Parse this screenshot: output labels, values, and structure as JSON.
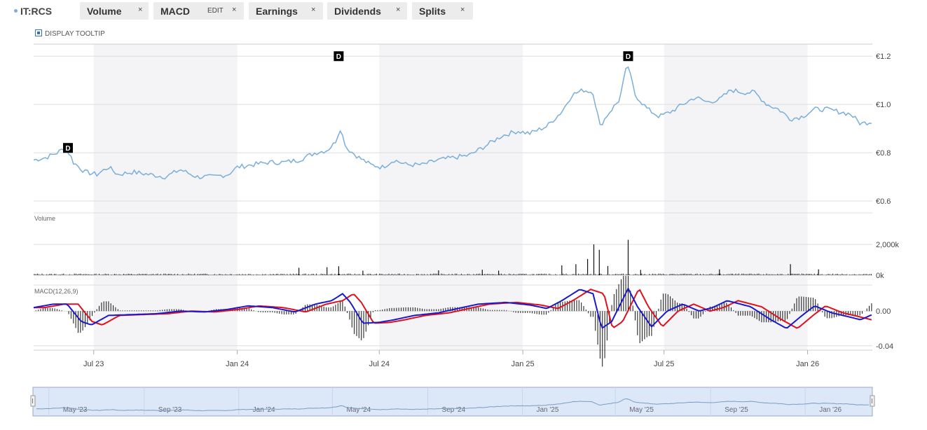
{
  "toolbar": {
    "ticker": "IT:RCS",
    "chips": [
      {
        "label": "Volume",
        "close": "×"
      },
      {
        "label": "MACD",
        "edit": "EDIT",
        "close": "×"
      },
      {
        "label": "Earnings",
        "close": "×"
      },
      {
        "label": "Dividends",
        "close": "×"
      },
      {
        "label": "Splits",
        "close": "×"
      }
    ]
  },
  "display_tooltip": "DISPLAY TOOLTIP",
  "colors": {
    "price_line": "#7aaedb",
    "macd_line": "#1a1acc",
    "signal_line": "#e0101c",
    "histogram": "#111111",
    "band": "#f4f4f7",
    "navigator_fill": "#dce8f8"
  },
  "chart_data": [
    {
      "type": "line",
      "name": "price",
      "ylim": [
        0.6,
        1.25
      ],
      "yticks": [
        {
          "value": 1.2,
          "label": "€1.2"
        },
        {
          "value": 1.0,
          "label": "€1.0"
        },
        {
          "value": 0.8,
          "label": "€0.8"
        },
        {
          "value": 0.6,
          "label": "€0.6"
        }
      ],
      "xticks": [
        "Jul 23",
        "Jan 24",
        "Jul 24",
        "Jan 25",
        "Jul 25",
        "Jan 26"
      ],
      "x_range": [
        "2023-04-15",
        "2026-03-25"
      ],
      "points": [
        [
          "2023-04-15",
          0.77
        ],
        [
          "2023-05-01",
          0.78
        ],
        [
          "2023-05-15",
          0.8
        ],
        [
          "2023-05-25",
          0.82
        ],
        [
          "2023-06-01",
          0.79
        ],
        [
          "2023-06-05",
          0.76
        ],
        [
          "2023-06-20",
          0.72
        ],
        [
          "2023-07-05",
          0.71
        ],
        [
          "2023-07-20",
          0.74
        ],
        [
          "2023-08-01",
          0.71
        ],
        [
          "2023-08-20",
          0.72
        ],
        [
          "2023-09-10",
          0.71
        ],
        [
          "2023-10-01",
          0.7
        ],
        [
          "2023-10-20",
          0.73
        ],
        [
          "2023-11-10",
          0.7
        ],
        [
          "2023-12-01",
          0.7
        ],
        [
          "2023-12-20",
          0.71
        ],
        [
          "2024-01-01",
          0.74
        ],
        [
          "2024-01-20",
          0.75
        ],
        [
          "2024-02-10",
          0.76
        ],
        [
          "2024-03-01",
          0.76
        ],
        [
          "2024-03-20",
          0.77
        ],
        [
          "2024-04-10",
          0.8
        ],
        [
          "2024-04-25",
          0.81
        ],
        [
          "2024-05-05",
          0.84
        ],
        [
          "2024-05-12",
          0.9
        ],
        [
          "2024-05-20",
          0.82
        ],
        [
          "2024-06-05",
          0.78
        ],
        [
          "2024-06-20",
          0.75
        ],
        [
          "2024-07-05",
          0.74
        ],
        [
          "2024-07-20",
          0.77
        ],
        [
          "2024-08-05",
          0.75
        ],
        [
          "2024-08-25",
          0.75
        ],
        [
          "2024-09-15",
          0.77
        ],
        [
          "2024-10-05",
          0.78
        ],
        [
          "2024-10-25",
          0.79
        ],
        [
          "2024-11-15",
          0.83
        ],
        [
          "2024-12-05",
          0.87
        ],
        [
          "2024-12-25",
          0.89
        ],
        [
          "2025-01-10",
          0.88
        ],
        [
          "2025-02-01",
          0.91
        ],
        [
          "2025-02-20",
          0.97
        ],
        [
          "2025-03-05",
          1.04
        ],
        [
          "2025-03-20",
          1.06
        ],
        [
          "2025-04-01",
          1.05
        ],
        [
          "2025-04-10",
          0.91
        ],
        [
          "2025-04-20",
          0.96
        ],
        [
          "2025-05-05",
          1.02
        ],
        [
          "2025-05-15",
          1.17
        ],
        [
          "2025-05-25",
          1.04
        ],
        [
          "2025-06-10",
          0.98
        ],
        [
          "2025-06-25",
          0.95
        ],
        [
          "2025-07-10",
          0.97
        ],
        [
          "2025-07-25",
          1.0
        ],
        [
          "2025-08-10",
          1.03
        ],
        [
          "2025-08-25",
          1.01
        ],
        [
          "2025-09-10",
          1.02
        ],
        [
          "2025-09-25",
          1.06
        ],
        [
          "2025-10-10",
          1.05
        ],
        [
          "2025-10-25",
          1.05
        ],
        [
          "2025-11-10",
          1.0
        ],
        [
          "2025-11-25",
          0.98
        ],
        [
          "2025-12-10",
          0.94
        ],
        [
          "2025-12-25",
          0.95
        ],
        [
          "2026-01-10",
          0.98
        ],
        [
          "2026-01-25",
          0.98
        ],
        [
          "2026-02-10",
          0.97
        ],
        [
          "2026-02-25",
          0.96
        ],
        [
          "2026-03-10",
          0.92
        ],
        [
          "2026-03-25",
          0.93
        ]
      ],
      "dividend_markers": [
        {
          "date": "2023-05-29",
          "label": "D"
        },
        {
          "date": "2024-05-10",
          "label": "D"
        },
        {
          "date": "2025-05-16",
          "label": "D"
        }
      ]
    },
    {
      "type": "bar",
      "name": "volume",
      "label": "Volume",
      "ylim": [
        0,
        2000
      ],
      "yticks": [
        {
          "value": 2000,
          "label": "2,000k"
        },
        {
          "value": 0,
          "label": "0k"
        }
      ],
      "baseline_k": 60,
      "spikes": [
        [
          "2024-03-20",
          480
        ],
        [
          "2024-04-25",
          520
        ],
        [
          "2024-05-10",
          580
        ],
        [
          "2024-06-10",
          300
        ],
        [
          "2024-09-15",
          320
        ],
        [
          "2024-11-10",
          360
        ],
        [
          "2024-12-01",
          300
        ],
        [
          "2025-02-20",
          640
        ],
        [
          "2025-03-10",
          720
        ],
        [
          "2025-03-25",
          1050
        ],
        [
          "2025-04-02",
          2000
        ],
        [
          "2025-04-09",
          1650
        ],
        [
          "2025-04-20",
          600
        ],
        [
          "2025-05-16",
          2300
        ],
        [
          "2025-06-01",
          350
        ],
        [
          "2025-09-10",
          380
        ],
        [
          "2025-12-10",
          720
        ],
        [
          "2026-01-15",
          380
        ]
      ]
    },
    {
      "type": "line",
      "name": "macd",
      "label": "MACD(12,26,9)",
      "ylim": [
        -0.045,
        0.03
      ],
      "yticks": [
        {
          "value": 0.0,
          "label": "0.00"
        },
        {
          "value": -0.04,
          "label": "-0.04"
        }
      ],
      "macd": [
        [
          "2023-04-15",
          0.004
        ],
        [
          "2023-05-10",
          0.008
        ],
        [
          "2023-05-28",
          0.008
        ],
        [
          "2023-06-15",
          -0.012
        ],
        [
          "2023-06-28",
          -0.016
        ],
        [
          "2023-07-20",
          -0.005
        ],
        [
          "2023-08-20",
          -0.004
        ],
        [
          "2023-09-20",
          -0.003
        ],
        [
          "2023-10-20",
          0.0
        ],
        [
          "2023-11-20",
          -0.001
        ],
        [
          "2023-12-20",
          0.002
        ],
        [
          "2024-01-15",
          0.006
        ],
        [
          "2024-02-15",
          0.004
        ],
        [
          "2024-03-15",
          -0.001
        ],
        [
          "2024-04-10",
          0.008
        ],
        [
          "2024-05-01",
          0.012
        ],
        [
          "2024-05-15",
          0.02
        ],
        [
          "2024-05-25",
          0.01
        ],
        [
          "2024-06-10",
          -0.014
        ],
        [
          "2024-07-01",
          -0.013
        ],
        [
          "2024-07-20",
          -0.01
        ],
        [
          "2024-08-15",
          -0.005
        ],
        [
          "2024-09-15",
          -0.002
        ],
        [
          "2024-10-15",
          0.004
        ],
        [
          "2024-11-05",
          0.008
        ],
        [
          "2024-12-10",
          0.01
        ],
        [
          "2025-01-10",
          0.007
        ],
        [
          "2025-02-01",
          0.003
        ],
        [
          "2025-02-20",
          0.012
        ],
        [
          "2025-03-15",
          0.025
        ],
        [
          "2025-04-01",
          0.02
        ],
        [
          "2025-04-12",
          -0.02
        ],
        [
          "2025-04-25",
          -0.012
        ],
        [
          "2025-05-16",
          0.026
        ],
        [
          "2025-05-28",
          0.005
        ],
        [
          "2025-06-15",
          -0.018
        ],
        [
          "2025-07-05",
          0.0
        ],
        [
          "2025-07-25",
          0.008
        ],
        [
          "2025-08-15",
          0.0
        ],
        [
          "2025-09-01",
          0.004
        ],
        [
          "2025-09-20",
          0.012
        ],
        [
          "2025-10-20",
          0.005
        ],
        [
          "2025-11-15",
          -0.01
        ],
        [
          "2025-12-05",
          -0.02
        ],
        [
          "2025-12-25",
          -0.005
        ],
        [
          "2026-01-10",
          0.006
        ],
        [
          "2026-02-01",
          -0.002
        ],
        [
          "2026-02-20",
          -0.006
        ],
        [
          "2026-03-10",
          -0.01
        ],
        [
          "2026-03-25",
          -0.004
        ]
      ],
      "signal_lag_days": 14
    },
    {
      "type": "line",
      "name": "navigator",
      "xticks": [
        "May '23",
        "Sep '23",
        "Jan '24",
        "May '24",
        "Sep '24",
        "Jan '25",
        "May '25",
        "Sep '25",
        "Jan '26"
      ]
    }
  ]
}
